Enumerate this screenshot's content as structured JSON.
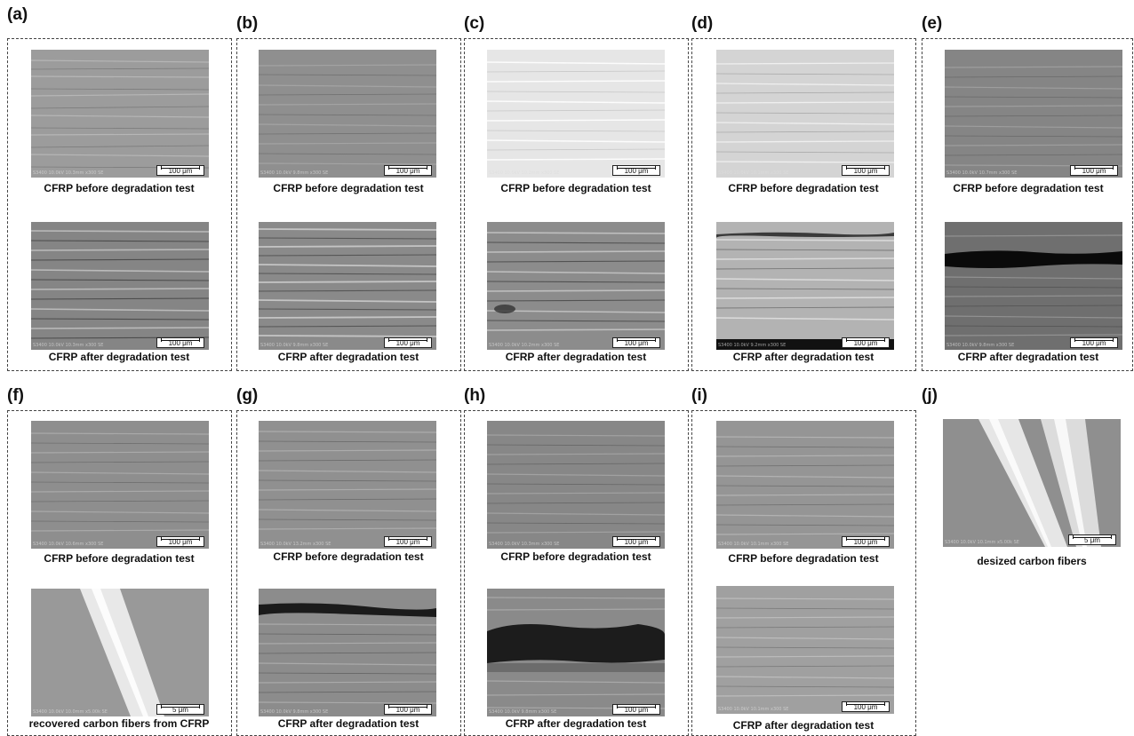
{
  "panel_labels": {
    "a": "(a)",
    "b": "(b)",
    "c": "(c)",
    "d": "(d)",
    "e": "(e)",
    "f": "(f)",
    "g": "(g)",
    "h": "(h)",
    "i": "(i)",
    "j": "(j)"
  },
  "captions": {
    "before": "CFRP before degradation test",
    "after": "CFRP after degradation test",
    "recovered": "recovered carbon fibers from CFRP",
    "desized": "desized carbon fibers"
  },
  "scale_bars": {
    "panel": "100 μm",
    "fiber": "5 μm"
  }
}
